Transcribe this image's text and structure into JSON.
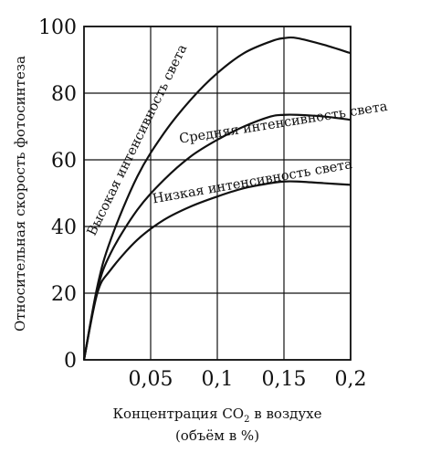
{
  "chart_data": {
    "type": "line",
    "title": "",
    "ylabel": "Относительная скорость фотосинтеза",
    "xlabel_line1_prefix": "Концентрация CO",
    "xlabel_subscript": "2",
    "xlabel_line1_suffix": " в воздухе",
    "xlabel_line2": "(объём в %)",
    "xlim": [
      0,
      0.2
    ],
    "ylim": [
      0,
      100
    ],
    "x_ticks": [
      {
        "value": 0.05,
        "label": "0,05"
      },
      {
        "value": 0.1,
        "label": "0,1"
      },
      {
        "value": 0.15,
        "label": "0,15"
      },
      {
        "value": 0.2,
        "label": "0,2"
      }
    ],
    "y_ticks": [
      {
        "value": 0,
        "label": "0"
      },
      {
        "value": 20,
        "label": "20"
      },
      {
        "value": 40,
        "label": "40"
      },
      {
        "value": 60,
        "label": "60"
      },
      {
        "value": 80,
        "label": "80"
      },
      {
        "value": 100,
        "label": "100"
      }
    ],
    "grid": true,
    "series": [
      {
        "name": "Высокая интенсивность света",
        "x": [
          0,
          0.01,
          0.02,
          0.04,
          0.06,
          0.08,
          0.1,
          0.12,
          0.14,
          0.15,
          0.16,
          0.18,
          0.2
        ],
        "y": [
          0,
          22,
          36,
          55,
          68,
          78,
          86,
          92,
          95.5,
          96.5,
          96.5,
          94.5,
          92
        ]
      },
      {
        "name": "Средняя интенсивность света",
        "x": [
          0,
          0.01,
          0.02,
          0.04,
          0.06,
          0.08,
          0.1,
          0.12,
          0.14,
          0.15,
          0.16,
          0.18,
          0.2
        ],
        "y": [
          0,
          21,
          32,
          45,
          54,
          61,
          66,
          70,
          73,
          73.5,
          73.5,
          73,
          72
        ]
      },
      {
        "name": "Низкая интенсивность света",
        "x": [
          0,
          0.01,
          0.02,
          0.04,
          0.06,
          0.08,
          0.1,
          0.12,
          0.14,
          0.15,
          0.16,
          0.18,
          0.2
        ],
        "y": [
          0,
          20,
          27,
          36,
          42,
          46,
          49,
          51.5,
          53,
          53.5,
          53.5,
          53,
          52.5
        ]
      }
    ]
  }
}
